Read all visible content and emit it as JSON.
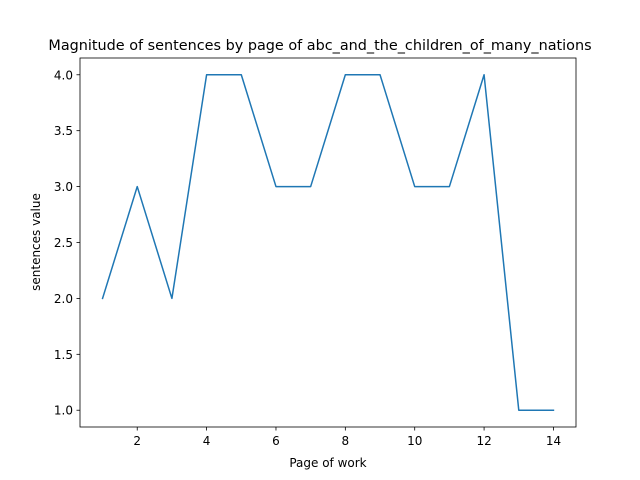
{
  "chart_data": {
    "type": "line",
    "title": "Magnitude of sentences by page of abc_and_the_children_of_many_nations",
    "xlabel": "Page of work",
    "ylabel": "sentences value",
    "x": [
      1,
      2,
      3,
      4,
      5,
      6,
      7,
      8,
      9,
      10,
      11,
      12,
      13,
      14
    ],
    "series": [
      {
        "values": [
          2,
          3,
          2,
          4,
          4,
          3,
          3,
          4,
          4,
          3,
          3,
          4,
          1,
          1
        ],
        "color": "#1f77b4"
      }
    ],
    "xlim": [
      0.35,
      14.65
    ],
    "ylim": [
      0.85,
      4.15
    ],
    "xticks": [
      2,
      4,
      6,
      8,
      10,
      12,
      14
    ],
    "xtick_labels": [
      "2",
      "4",
      "6",
      "8",
      "10",
      "12",
      "14"
    ],
    "yticks": [
      1.0,
      1.5,
      2.0,
      2.5,
      3.0,
      3.5,
      4.0
    ],
    "ytick_labels": [
      "1.0",
      "1.5",
      "2.0",
      "2.5",
      "3.0",
      "3.5",
      "4.0"
    ],
    "grid": false,
    "legend": "none"
  }
}
